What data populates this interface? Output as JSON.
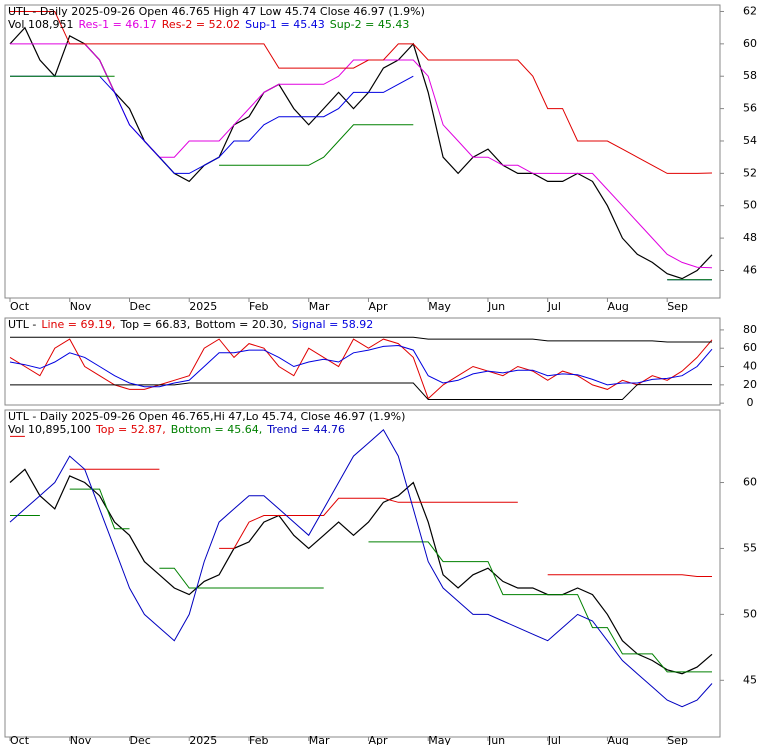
{
  "chart_data": [
    {
      "type": "line",
      "title": "UTL - Daily 2025-09-26 Open 46.765 High 47 Low 45.74 Close 46.97 (1.9%)",
      "subtitle": "Vol 108,951",
      "categories": [
        "Oct",
        null,
        null,
        null,
        "Nov",
        null,
        null,
        null,
        "Dec",
        null,
        null,
        null,
        "2025",
        null,
        null,
        null,
        "Feb",
        null,
        null,
        null,
        "Mar",
        null,
        null,
        null,
        "Apr",
        null,
        null,
        null,
        "May",
        null,
        null,
        null,
        "Jun",
        null,
        null,
        null,
        "Jul",
        null,
        null,
        null,
        "Aug",
        null,
        null,
        null,
        "Sep",
        null,
        null,
        null
      ],
      "ylim": [
        44.3,
        62.4
      ],
      "yticks": [
        46,
        48,
        50,
        52,
        54,
        56,
        58,
        60,
        62
      ],
      "series": [
        {
          "name": "Close",
          "color": "#000000",
          "values": [
            60,
            61,
            59,
            58,
            60.5,
            60,
            59,
            57,
            56,
            54,
            53,
            52,
            51.5,
            52.5,
            53,
            55,
            55.5,
            57,
            57.5,
            56,
            55,
            56,
            57,
            56,
            57,
            58.5,
            59,
            60,
            57,
            53,
            52,
            53,
            53.5,
            52.5,
            52,
            52,
            51.5,
            51.5,
            52,
            51.5,
            50,
            48,
            47,
            46.5,
            45.8,
            45.5,
            46,
            46.97
          ]
        },
        {
          "name": "Res-1 = 46.17",
          "color": "#e000e0",
          "values": [
            60,
            60,
            60,
            60,
            60,
            60,
            59,
            57,
            55,
            54,
            53,
            53,
            54,
            54,
            54,
            55,
            56,
            57,
            57.5,
            57.5,
            57.5,
            57.5,
            58,
            59,
            59,
            59,
            59,
            59,
            58,
            55,
            54,
            53,
            53,
            52.5,
            52.5,
            52,
            52,
            52,
            52,
            52,
            51,
            50,
            49,
            48,
            47,
            46.5,
            46.2,
            46.17
          ]
        },
        {
          "name": "Res-2 = 52.02",
          "color": "#e00000",
          "values": [
            62,
            62,
            62,
            62,
            60,
            60,
            60,
            60,
            60,
            60,
            60,
            60,
            60,
            60,
            60,
            60,
            60,
            60,
            58.5,
            58.5,
            58.5,
            58.5,
            58.5,
            58.5,
            59,
            59,
            60,
            60,
            59,
            59,
            59,
            59,
            59,
            59,
            59,
            58,
            56,
            56,
            54,
            54,
            54,
            53.5,
            53,
            52.5,
            52,
            52,
            52,
            52.02
          ]
        },
        {
          "name": "Sup-1 = 45.43",
          "color": "#0000e0",
          "values": [
            58,
            58,
            58,
            58,
            58,
            58,
            58,
            57,
            55,
            54,
            53,
            52,
            52,
            52.5,
            53,
            54,
            54,
            55,
            55.5,
            55.5,
            55.5,
            55.5,
            56,
            57,
            57,
            57,
            57.5,
            58,
            null,
            null,
            null,
            null,
            null,
            null,
            null,
            null,
            null,
            null,
            null,
            null,
            null,
            null,
            null,
            null,
            45.43,
            45.43,
            45.43,
            45.43
          ]
        },
        {
          "name": "Sup-2 = 45.43",
          "color": "#008000",
          "values": [
            58,
            58,
            58,
            58,
            58,
            58,
            58,
            58,
            null,
            null,
            null,
            null,
            null,
            null,
            52.5,
            52.5,
            52.5,
            52.5,
            52.5,
            52.5,
            52.5,
            53,
            54,
            55,
            55,
            55,
            55,
            55,
            null,
            null,
            null,
            null,
            null,
            null,
            null,
            null,
            null,
            null,
            null,
            null,
            null,
            null,
            null,
            null,
            45.43,
            45.43,
            45.43,
            45.43
          ]
        }
      ]
    },
    {
      "type": "line",
      "title": "UTL -",
      "ylim": [
        -2,
        93
      ],
      "yticks": [
        0,
        20,
        40,
        60,
        80
      ],
      "series": [
        {
          "name": "Line = 69.19,",
          "color": "#e00000",
          "values": [
            50,
            40,
            30,
            60,
            70,
            40,
            30,
            20,
            15,
            15,
            20,
            25,
            30,
            60,
            70,
            50,
            65,
            60,
            40,
            30,
            60,
            50,
            40,
            70,
            60,
            70,
            65,
            50,
            5,
            20,
            30,
            40,
            35,
            30,
            40,
            35,
            25,
            35,
            30,
            20,
            15,
            25,
            20,
            30,
            25,
            35,
            50,
            69.19
          ]
        },
        {
          "name": "Top = 66.83,",
          "color": "#000000",
          "values": [
            72,
            72,
            72,
            72,
            72,
            72,
            72,
            72,
            72,
            72,
            72,
            72,
            72,
            72,
            72,
            72,
            72,
            72,
            72,
            72,
            72,
            72,
            72,
            72,
            72,
            72,
            72,
            72,
            70,
            70,
            70,
            70,
            70,
            70,
            70,
            70,
            68,
            68,
            68,
            68,
            68,
            68,
            68,
            68,
            66.83,
            66.83,
            66.83,
            66.83
          ]
        },
        {
          "name": "Bottom = 20.30,",
          "color": "#000000",
          "values": [
            20,
            20,
            20,
            20,
            20,
            20,
            20,
            20,
            20,
            20,
            20,
            20,
            22,
            22,
            22,
            22,
            22,
            22,
            22,
            22,
            22,
            22,
            22,
            22,
            22,
            22,
            22,
            22,
            4,
            4,
            4,
            4,
            4,
            4,
            4,
            4,
            4,
            4,
            4,
            4,
            4,
            4,
            20.3,
            20.3,
            20.3,
            20.3,
            20.3,
            20.3
          ]
        },
        {
          "name": "Signal = 58.92",
          "color": "#0000e0",
          "values": [
            45,
            42,
            38,
            45,
            55,
            50,
            40,
            30,
            22,
            18,
            18,
            22,
            25,
            40,
            55,
            55,
            58,
            58,
            50,
            40,
            45,
            48,
            45,
            55,
            58,
            62,
            63,
            58,
            30,
            22,
            25,
            32,
            35,
            33,
            36,
            36,
            30,
            32,
            31,
            26,
            20,
            22,
            22,
            26,
            27,
            30,
            40,
            58.92
          ]
        }
      ]
    },
    {
      "type": "line",
      "title": "UTL - Daily 2025-09-26 Open 46.765,Hi 47,Lo 45.74, Close 46.97 (1.9%)",
      "subtitle": "Vol 10,895,100",
      "ylim": [
        40.7,
        65.5
      ],
      "yticks": [
        45,
        50,
        55,
        60
      ],
      "series": [
        {
          "name": "Top = 52.87,",
          "color": "#e00000",
          "values": [
            63.5,
            63.5,
            null,
            null,
            61,
            61,
            61,
            61,
            61,
            61,
            61,
            null,
            null,
            null,
            55,
            55,
            57,
            57.5,
            57.5,
            57.5,
            57.5,
            57.5,
            58.8,
            58.8,
            58.8,
            58.8,
            58.5,
            58.5,
            58.5,
            58.5,
            58.5,
            58.5,
            58.5,
            58.5,
            58.5,
            null,
            53,
            53,
            53,
            53,
            53,
            53,
            53,
            53,
            53,
            53,
            52.87,
            52.87
          ]
        },
        {
          "name": "Bottom = 45.64,",
          "color": "#008000",
          "values": [
            57.5,
            57.5,
            57.5,
            null,
            59.5,
            59.5,
            59.5,
            56.5,
            56.5,
            null,
            53.5,
            53.5,
            52,
            52,
            52,
            52,
            52,
            52,
            52,
            52,
            52,
            52,
            null,
            null,
            55.5,
            55.5,
            55.5,
            55.5,
            55.5,
            54,
            54,
            54,
            54,
            51.5,
            51.5,
            51.5,
            51.5,
            51.5,
            51.5,
            49,
            49,
            47,
            47,
            47,
            45.64,
            45.64,
            45.64,
            45.64
          ]
        },
        {
          "name": "Trend = 44.76",
          "color": "#0000c0",
          "values": [
            57,
            58,
            59,
            60,
            62,
            61,
            58,
            55,
            52,
            50,
            49,
            48,
            50,
            54,
            57,
            58,
            59,
            59,
            58,
            57,
            56,
            58,
            60,
            62,
            63,
            64,
            62,
            58,
            54,
            52,
            51,
            50,
            50,
            49.5,
            49,
            48.5,
            48,
            49,
            50,
            49.5,
            48,
            46.5,
            45.5,
            44.5,
            43.5,
            43,
            43.5,
            44.76
          ]
        }
      ]
    }
  ]
}
